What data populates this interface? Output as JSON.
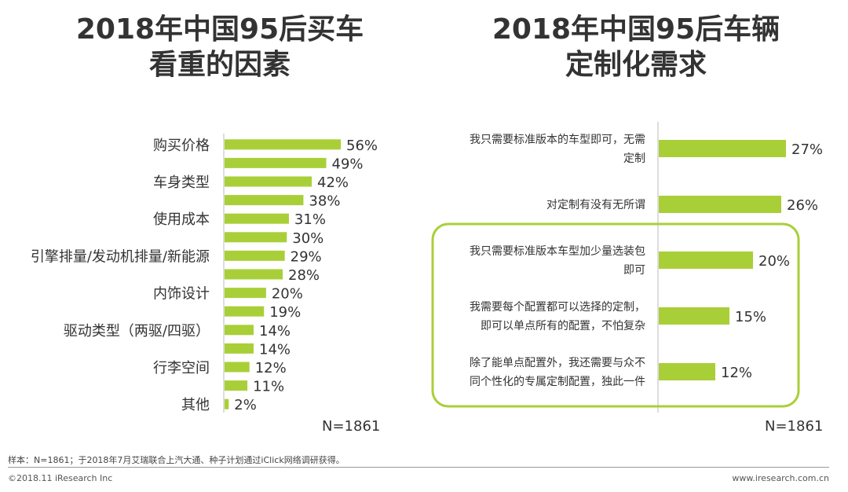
{
  "title_left_line1": "2018年中国95后买车",
  "title_left_line2": "看重的因素",
  "title_right_line1": "2018年中国95后车辆",
  "title_right_line2": "定制化需求",
  "bar_color": "#a9cf38",
  "highlight_color": "#a9cf38",
  "axis_color": "#bbbbbb",
  "chart_data": [
    {
      "type": "bar",
      "orientation": "horizontal",
      "title": "2018年中国95后买车看重的因素",
      "categories": [
        "购买价格",
        "车身类型",
        "使用成本",
        "引擎排量/发动机排量/新能源",
        "内饰设计",
        "驱动类型（两驱/四驱）",
        "行李空间",
        "其他"
      ],
      "bars": [
        {
          "label": "购买价格",
          "value": 56,
          "text": "56%"
        },
        {
          "label": "",
          "value": 49,
          "text": "49%"
        },
        {
          "label": "车身类型",
          "value": 42,
          "text": "42%"
        },
        {
          "label": "",
          "value": 38,
          "text": "38%"
        },
        {
          "label": "使用成本",
          "value": 31,
          "text": "31%"
        },
        {
          "label": "",
          "value": 30,
          "text": "30%"
        },
        {
          "label": "引擎排量/发动机排量/新能源",
          "value": 29,
          "text": "29%"
        },
        {
          "label": "",
          "value": 28,
          "text": "28%"
        },
        {
          "label": "内饰设计",
          "value": 20,
          "text": "20%"
        },
        {
          "label": "",
          "value": 19,
          "text": "19%"
        },
        {
          "label": "驱动类型（两驱/四驱）",
          "value": 14,
          "text": "14%"
        },
        {
          "label": "",
          "value": 14,
          "text": "14%"
        },
        {
          "label": "行李空间",
          "value": 12,
          "text": "12%"
        },
        {
          "label": "",
          "value": 11,
          "text": "11%"
        },
        {
          "label": "其他",
          "value": 2,
          "text": "2%"
        }
      ],
      "unit": "%",
      "xlim": [
        0,
        60
      ],
      "n_label": "N=1861"
    },
    {
      "type": "bar",
      "orientation": "horizontal",
      "title": "2018年中国95后车辆定制化需求",
      "bars": [
        {
          "label_lines": [
            "我只需要标准版本的车型即可，无需",
            "定制"
          ],
          "value": 27,
          "text": "27%",
          "highlighted": false
        },
        {
          "label_lines": [
            "对定制有没有无所谓"
          ],
          "value": 26,
          "text": "26%",
          "highlighted": false
        },
        {
          "label_lines": [
            "我只需要标准版本车型加少量选装包",
            "即可"
          ],
          "value": 20,
          "text": "20%",
          "highlighted": true
        },
        {
          "label_lines": [
            "我需要每个配置都可以选择的定制，",
            "即可以单点所有的配置，不怕复杂"
          ],
          "value": 15,
          "text": "15%",
          "highlighted": true
        },
        {
          "label_lines": [
            "除了能单点配置外，我还需要与众不",
            "同个性化的专属定制配置，独此一件"
          ],
          "value": 12,
          "text": "12%",
          "highlighted": true
        }
      ],
      "unit": "%",
      "xlim": [
        0,
        30
      ],
      "n_label": "N=1861"
    }
  ],
  "footnote": "样本：N=1861；于2018年7月艾瑞联合上汽大通、种子计划通过iClick网络调研获得。",
  "copyright": "©2018.11 iResearch Inc",
  "website": "www.iresearch.com.cn"
}
